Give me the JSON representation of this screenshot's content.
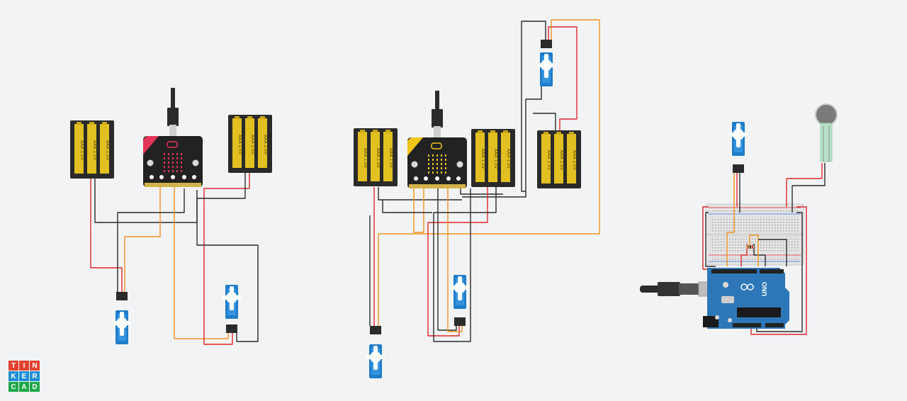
{
  "app": {
    "logo_letters": [
      "T",
      "I",
      "N",
      "K",
      "E",
      "R",
      "C",
      "A",
      "D"
    ],
    "logo_colors": [
      "#e2412f",
      "#e2412f",
      "#e2412f",
      "#1e8fd6",
      "#1e8fd6",
      "#1e8fd6",
      "#1fa84a",
      "#1fa84a",
      "#1fa84a"
    ]
  },
  "components": {
    "battery_label": "AAA 1.5V",
    "arduino_label": "UNO"
  },
  "colors": {
    "wire_red": "#e0262b",
    "wire_black": "#2b2b2b",
    "wire_orange": "#f0931f",
    "battery_yellow": "#e2c021",
    "battery_case": "#2a2a2a",
    "servo_blue": "#1f7dc9",
    "microbit_board": "#222222",
    "arduino_blue": "#2d77b8",
    "breadboard": "#e4e4e4"
  },
  "icons": {
    "usb": "usb-connector-icon",
    "logo": "tinkercad-logo"
  }
}
